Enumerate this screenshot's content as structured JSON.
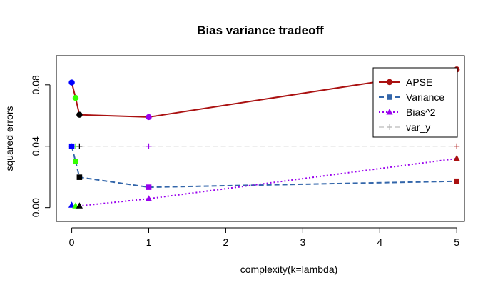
{
  "chart_data": {
    "type": "line",
    "title": "Bias variance tradeoff",
    "xlabel": "complexity(k=lambda)",
    "ylabel": "squared errors",
    "xlim": [
      -0.2,
      5.1
    ],
    "ylim": [
      -0.009,
      0.099
    ],
    "x_ticks": [
      "0",
      "1",
      "2",
      "3",
      "4",
      "5"
    ],
    "y_ticks": [
      "0.00",
      "0.04",
      "0.08"
    ],
    "x": [
      0,
      0.05,
      0.1,
      1,
      5
    ],
    "point_colors": [
      "#0000ff",
      "#33ff00",
      "#000000",
      "#9900ee",
      "#aa1111"
    ],
    "series": [
      {
        "name": "APSE",
        "values": [
          0.0815,
          0.0715,
          0.0605,
          0.059,
          0.09
        ],
        "color": "#aa1111",
        "dash": "solid",
        "marker": "circle"
      },
      {
        "name": "Variance",
        "values": [
          0.04,
          0.03,
          0.0198,
          0.0133,
          0.0172
        ],
        "color": "#3366aa",
        "dash": "dashed",
        "marker": "square"
      },
      {
        "name": "Bias^2",
        "values": [
          0.0016,
          0.0011,
          0.0011,
          0.0058,
          0.032
        ],
        "color": "#9900ee",
        "dash": "dotted",
        "marker": "triangle"
      },
      {
        "name": "var_y",
        "values": [
          0.04,
          0.04,
          0.04,
          0.04,
          0.04
        ],
        "color": "#bbbbbb",
        "dash": "dashed",
        "marker": "plus"
      }
    ],
    "legend": "top-right",
    "grid": false
  }
}
